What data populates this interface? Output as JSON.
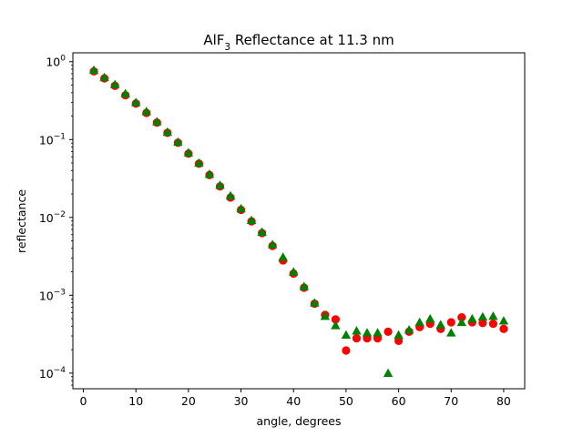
{
  "chart_data": {
    "type": "scatter",
    "title_main": "AlF",
    "title_sub": "3",
    "title_rest": " Reflectance at 11.3 nm",
    "xlabel": "angle, degrees",
    "ylabel": "reflectance",
    "xlim": [
      -2,
      84
    ],
    "ylim": [
      6.3e-05,
      1.3
    ],
    "yscale": "log",
    "grid": false,
    "x_ticks": [
      0,
      10,
      20,
      30,
      40,
      50,
      60,
      70,
      80
    ],
    "y_ticks": [
      {
        "value": 0.0001,
        "base": "10",
        "exp": "−4"
      },
      {
        "value": 0.001,
        "base": "10",
        "exp": "−3"
      },
      {
        "value": 0.01,
        "base": "10",
        "exp": "−2"
      },
      {
        "value": 0.1,
        "base": "10",
        "exp": "−1"
      },
      {
        "value": 1,
        "base": "10",
        "exp": "0"
      }
    ],
    "series": [
      {
        "marker": "circle",
        "color": "#ff0000",
        "x": [
          2,
          4,
          6,
          8,
          10,
          12,
          14,
          16,
          18,
          20,
          22,
          24,
          26,
          28,
          30,
          32,
          34,
          36,
          38,
          40,
          42,
          44,
          46,
          48,
          50,
          52,
          54,
          56,
          58,
          60,
          62,
          64,
          66,
          68,
          70,
          72,
          74,
          76,
          78,
          80
        ],
        "y": [
          0.75,
          0.61,
          0.49,
          0.37,
          0.29,
          0.22,
          0.165,
          0.122,
          0.091,
          0.066,
          0.049,
          0.035,
          0.025,
          0.018,
          0.0125,
          0.0089,
          0.0063,
          0.0043,
          0.0028,
          0.0019,
          0.00125,
          0.00078,
          0.00056,
          0.00049,
          0.000195,
          0.00028,
          0.00028,
          0.00028,
          0.00034,
          0.00026,
          0.00034,
          0.00039,
          0.00043,
          0.00037,
          0.00045,
          0.00052,
          0.00045,
          0.00044,
          0.00043,
          0.00037
        ]
      },
      {
        "marker": "triangle",
        "color": "#008000",
        "x": [
          2,
          4,
          6,
          8,
          10,
          12,
          14,
          16,
          18,
          20,
          22,
          24,
          26,
          28,
          30,
          32,
          34,
          36,
          38,
          40,
          42,
          44,
          46,
          48,
          50,
          52,
          54,
          56,
          58,
          60,
          62,
          64,
          66,
          68,
          70,
          72,
          74,
          76,
          78,
          80
        ],
        "y": [
          0.78,
          0.63,
          0.51,
          0.39,
          0.3,
          0.23,
          0.17,
          0.125,
          0.093,
          0.068,
          0.05,
          0.036,
          0.026,
          0.019,
          0.013,
          0.0092,
          0.0065,
          0.0045,
          0.0031,
          0.002,
          0.0013,
          0.0008,
          0.00054,
          0.00041,
          0.00031,
          0.00035,
          0.00033,
          0.00033,
          0.0001,
          0.00031,
          0.00036,
          0.00045,
          0.0005,
          0.00042,
          0.00033,
          0.00045,
          0.0005,
          0.00053,
          0.00054,
          0.00047
        ]
      }
    ]
  }
}
